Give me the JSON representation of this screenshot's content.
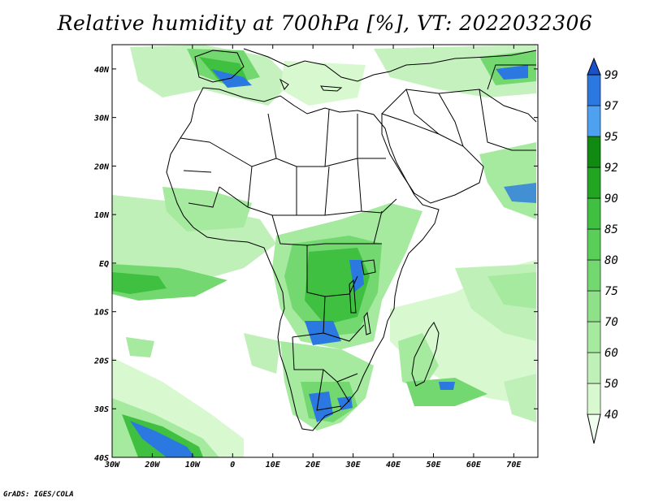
{
  "title": "Relative humidity at 700hPa [%], VT: 2022032306",
  "credit": "GrADS: IGES/COLA",
  "map": {
    "projection": "lat-lon",
    "lon_range": [
      -30,
      76
    ],
    "lat_range": [
      -40,
      45
    ]
  },
  "axes": {
    "lon_ticks": [
      {
        "value": -30,
        "label": "30W"
      },
      {
        "value": -20,
        "label": "20W"
      },
      {
        "value": -10,
        "label": "10W"
      },
      {
        "value": 0,
        "label": "0"
      },
      {
        "value": 10,
        "label": "10E"
      },
      {
        "value": 20,
        "label": "20E"
      },
      {
        "value": 30,
        "label": "30E"
      },
      {
        "value": 40,
        "label": "40E"
      },
      {
        "value": 50,
        "label": "50E"
      },
      {
        "value": 60,
        "label": "60E"
      },
      {
        "value": 70,
        "label": "70E"
      }
    ],
    "lat_ticks": [
      {
        "value": 40,
        "label": "40N"
      },
      {
        "value": 30,
        "label": "30N"
      },
      {
        "value": 20,
        "label": "20N"
      },
      {
        "value": 10,
        "label": "10N"
      },
      {
        "value": 0,
        "label": "EQ"
      },
      {
        "value": -10,
        "label": "10S"
      },
      {
        "value": -20,
        "label": "20S"
      },
      {
        "value": -30,
        "label": "30S"
      },
      {
        "value": -40,
        "label": "40S"
      }
    ]
  },
  "colorbar": {
    "levels": [
      "40",
      "50",
      "60",
      "70",
      "75",
      "80",
      "85",
      "90",
      "92",
      "95",
      "97",
      "99"
    ],
    "colors": [
      "#f0fff0",
      "#d8f8d0",
      "#bff0b8",
      "#a6eaa0",
      "#8ee188",
      "#74d870",
      "#5acf58",
      "#40c040",
      "#22a622",
      "#108a10",
      "#4ea0f0",
      "#2a78e0",
      "#1a50c8"
    ]
  },
  "fields": {
    "green": [
      "#d8f8d0",
      "#a6eaa0",
      "#74d870",
      "#40c040"
    ],
    "blue": "#2a78e0"
  }
}
